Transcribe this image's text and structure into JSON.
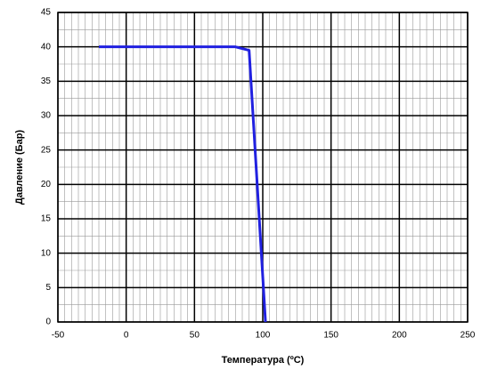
{
  "chart_data": {
    "type": "line",
    "x_label": "Температура (ºC)",
    "y_label": "Давление (Бар)",
    "x": [
      -20,
      80,
      90,
      102
    ],
    "series": [
      {
        "name": "Давление",
        "color": "#2020e0",
        "values": [
          40,
          40,
          39.5,
          0
        ]
      }
    ],
    "xlim": [
      -50,
      250
    ],
    "xticks": [
      -50,
      0,
      50,
      100,
      150,
      200,
      250
    ],
    "ylim": [
      0,
      45
    ],
    "yticks": [
      0,
      5,
      10,
      15,
      20,
      25,
      30,
      35,
      40,
      45
    ],
    "grid": true,
    "minor_grid": true,
    "legend": false
  }
}
